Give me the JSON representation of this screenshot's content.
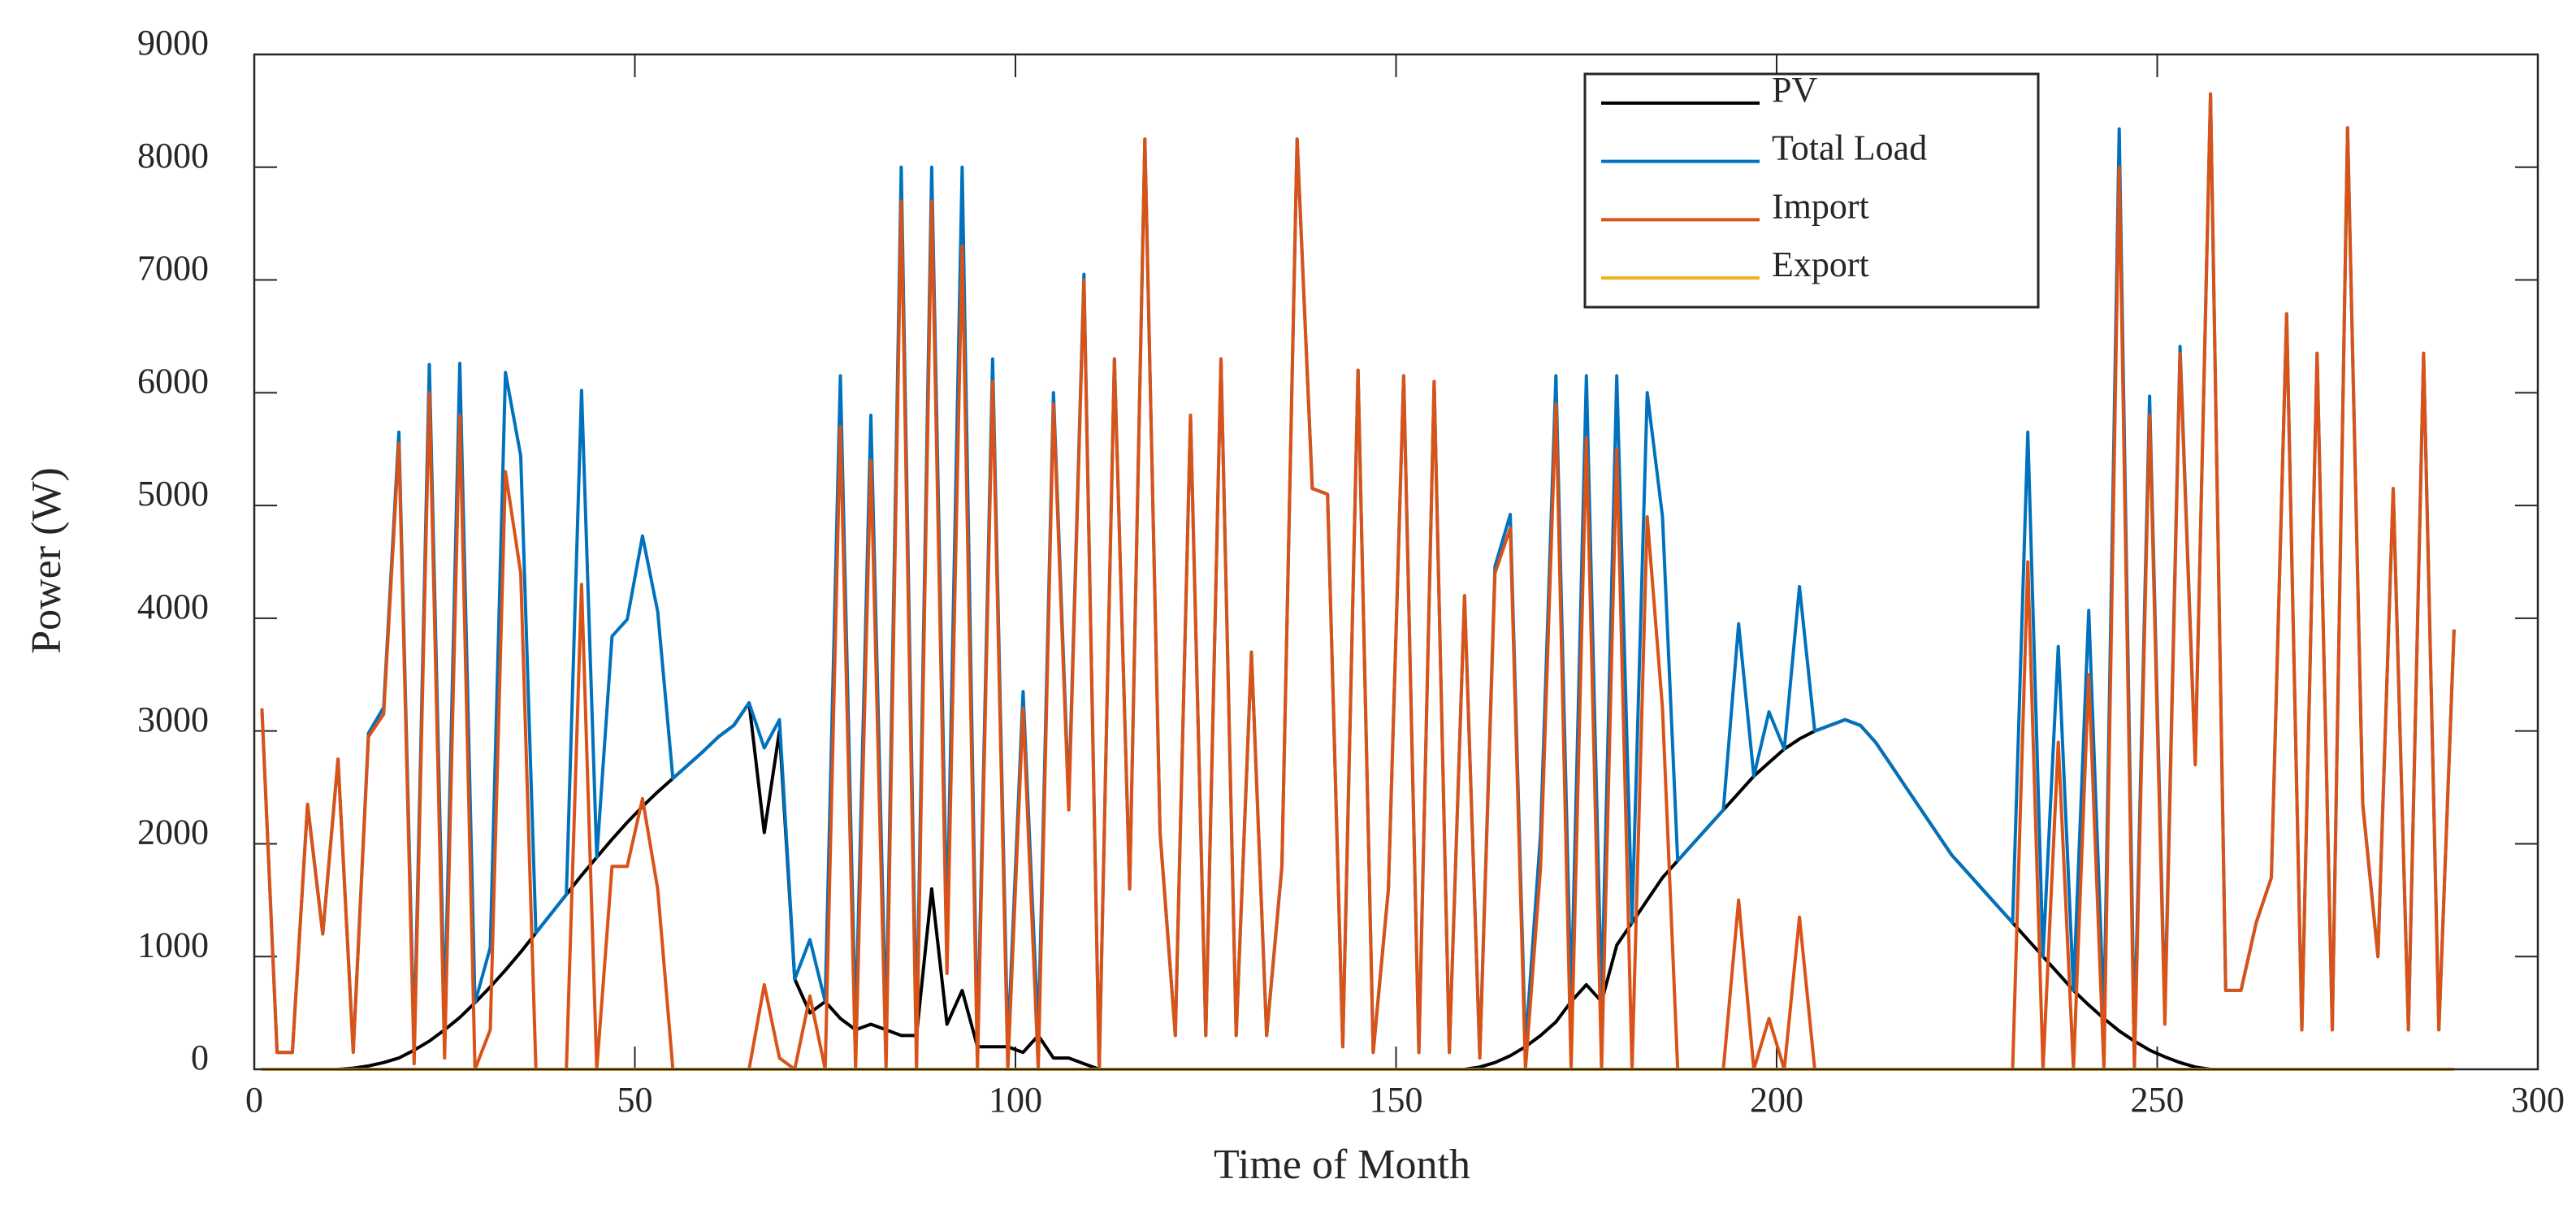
{
  "chart_data": {
    "type": "line",
    "xlabel": "Time of Month",
    "ylabel": "Power (W)",
    "x": [
      1,
      3,
      5,
      7,
      9,
      11,
      13,
      15,
      17,
      19,
      21,
      23,
      25,
      27,
      29,
      31,
      33,
      35,
      37,
      39,
      41,
      43,
      45,
      47,
      49,
      51,
      53,
      55,
      57,
      59,
      61,
      63,
      65,
      67,
      69,
      71,
      73,
      75,
      77,
      79,
      81,
      83,
      85,
      87,
      89,
      91,
      93,
      95,
      97,
      99,
      101,
      103,
      105,
      107,
      109,
      111,
      113,
      115,
      117,
      119,
      121,
      123,
      125,
      127,
      129,
      131,
      133,
      135,
      137,
      139,
      141,
      143,
      145,
      147,
      149,
      151,
      153,
      155,
      157,
      159,
      161,
      163,
      165,
      167,
      169,
      171,
      173,
      175,
      177,
      179,
      181,
      183,
      185,
      187,
      189,
      191,
      193,
      195,
      197,
      199,
      201,
      203,
      205,
      207,
      209,
      211,
      213,
      215,
      217,
      219,
      221,
      223,
      225,
      227,
      229,
      231,
      233,
      235,
      237,
      239,
      241,
      243,
      245,
      247,
      249,
      251,
      253,
      255,
      257,
      259,
      261,
      263,
      265,
      267,
      269,
      271,
      273,
      275,
      277,
      279,
      281,
      283,
      285,
      287,
      289
    ],
    "series": [
      {
        "name": "PV",
        "color": "#000000",
        "values": [
          0,
          0,
          0,
          0,
          0,
          0,
          10,
          30,
          60,
          100,
          170,
          250,
          350,
          460,
          590,
          730,
          880,
          1040,
          1210,
          1380,
          1550,
          1720,
          1880,
          2040,
          2190,
          2330,
          2460,
          2580,
          2700,
          2820,
          2950,
          3050,
          3250,
          2100,
          3000,
          800,
          500,
          600,
          450,
          350,
          400,
          350,
          300,
          300,
          1600,
          400,
          700,
          200,
          200,
          200,
          150,
          300,
          100,
          100,
          50,
          0,
          0,
          0,
          0,
          0,
          0,
          0,
          0,
          0,
          0,
          0,
          0,
          0,
          0,
          0,
          0,
          0,
          0,
          0,
          0,
          0,
          0,
          0,
          0,
          0,
          20,
          60,
          120,
          200,
          300,
          420,
          600,
          750,
          600,
          1100,
          1300,
          1500,
          1700,
          1850,
          2000,
          2150,
          2300,
          2450,
          2600,
          2720,
          2840,
          2930,
          3000,
          3050,
          3100,
          3050,
          2900,
          2700,
          2500,
          2300,
          2100,
          1900,
          1750,
          1600,
          1450,
          1300,
          1150,
          1000,
          850,
          700,
          570,
          450,
          340,
          250,
          170,
          110,
          60,
          20,
          0,
          0,
          0,
          0,
          0,
          0,
          0,
          0,
          0,
          0,
          0,
          0,
          0,
          0,
          0,
          0,
          0
        ]
      },
      {
        "name": "Total Load",
        "color": "#0072BD",
        "values": [
          3200,
          150,
          150,
          2350,
          1200,
          2750,
          160,
          2980,
          3210,
          5650,
          220,
          6250,
          450,
          6260,
          590,
          1080,
          6180,
          5440,
          1210,
          1380,
          1550,
          6020,
          1880,
          3840,
          3990,
          4730,
          4060,
          2580,
          2700,
          2820,
          2950,
          3050,
          3250,
          2850,
          3100,
          800,
          1150,
          600,
          6150,
          350,
          5800,
          350,
          8000,
          300,
          8000,
          1250,
          8000,
          200,
          6300,
          200,
          3350,
          300,
          6000,
          2400,
          7050,
          0,
          6300,
          1600,
          8250,
          2100,
          300,
          5800,
          300,
          6300,
          300,
          3700,
          300,
          1800,
          8250,
          5150,
          5100,
          200,
          6200,
          150,
          1600,
          6150,
          150,
          6100,
          150,
          4200,
          120,
          4460,
          4920,
          200,
          2100,
          6150,
          600,
          6150,
          600,
          6150,
          1300,
          6000,
          4900,
          1850,
          2000,
          2150,
          2300,
          3950,
          2600,
          3170,
          2840,
          4280,
          3000,
          3050,
          3100,
          3050,
          2900,
          2700,
          2500,
          2300,
          2100,
          1900,
          1750,
          1600,
          1450,
          1300,
          5650,
          1000,
          3750,
          700,
          4070,
          450,
          8340,
          250,
          5970,
          510,
          6410,
          2720,
          8650,
          700,
          700,
          1300,
          1700,
          6700,
          350,
          6350,
          350,
          8350,
          2350,
          1000,
          5150,
          350,
          6350,
          350,
          3900
        ]
      },
      {
        "name": "Import",
        "color": "#D95319",
        "values": [
          3200,
          150,
          150,
          2350,
          1200,
          2750,
          150,
          2950,
          3150,
          5550,
          50,
          6000,
          100,
          5800,
          0,
          350,
          5300,
          4400,
          0,
          0,
          0,
          4300,
          0,
          1800,
          1800,
          2400,
          1600,
          0,
          0,
          0,
          0,
          0,
          0,
          750,
          100,
          0,
          650,
          0,
          5700,
          0,
          5400,
          0,
          7700,
          0,
          7700,
          850,
          7300,
          0,
          6100,
          0,
          3200,
          0,
          5900,
          2300,
          7000,
          0,
          6300,
          1600,
          8250,
          2100,
          300,
          5800,
          300,
          6300,
          300,
          3700,
          300,
          1800,
          8250,
          5150,
          5100,
          200,
          6200,
          150,
          1600,
          6150,
          150,
          6100,
          150,
          4200,
          100,
          4400,
          4800,
          0,
          1800,
          5900,
          0,
          5600,
          0,
          5500,
          0,
          4900,
          3200,
          0,
          0,
          0,
          0,
          1500,
          0,
          450,
          0,
          1350,
          0,
          0,
          0,
          0,
          0,
          0,
          0,
          0,
          0,
          0,
          0,
          0,
          0,
          0,
          4500,
          0,
          2900,
          0,
          3500,
          0,
          8000,
          0,
          5800,
          400,
          6350,
          2700,
          8650,
          700,
          700,
          1300,
          1700,
          6700,
          350,
          6350,
          350,
          8350,
          2350,
          1000,
          5150,
          350,
          6350,
          350,
          3900
        ]
      },
      {
        "name": "Export",
        "color": "#EDB120",
        "values": [
          0,
          0,
          0,
          0,
          0,
          0,
          0,
          0,
          0,
          0,
          0,
          0,
          0,
          0,
          0,
          0,
          0,
          0,
          0,
          0,
          0,
          0,
          0,
          0,
          0,
          0,
          0,
          0,
          0,
          0,
          0,
          0,
          0,
          0,
          0,
          0,
          0,
          0,
          0,
          0,
          0,
          0,
          0,
          0,
          0,
          0,
          0,
          0,
          0,
          0,
          0,
          0,
          0,
          0,
          0,
          0,
          0,
          0,
          0,
          0,
          0,
          0,
          0,
          0,
          0,
          0,
          0,
          0,
          0,
          0,
          0,
          0,
          0,
          0,
          0,
          0,
          0,
          0,
          0,
          0,
          0,
          0,
          0,
          0,
          0,
          0,
          0,
          0,
          0,
          0,
          0,
          0,
          0,
          0,
          0,
          0,
          0,
          0,
          0,
          0,
          0,
          0,
          0,
          0,
          0,
          0,
          0,
          0,
          0,
          0,
          0,
          0,
          0,
          0,
          0,
          0,
          0,
          0,
          0,
          0,
          0,
          0,
          0,
          0,
          0,
          0,
          0,
          0,
          0,
          0,
          0,
          0,
          0,
          0,
          0,
          0,
          0,
          0,
          0,
          0,
          0,
          0,
          0,
          0,
          0
        ]
      }
    ],
    "xlim": [
      0,
      300
    ],
    "xticks": [
      0,
      50,
      100,
      150,
      200,
      250,
      300
    ],
    "ylim": [
      0,
      9000
    ],
    "yticks": [
      0,
      1000,
      2000,
      3000,
      4000,
      5000,
      6000,
      7000,
      8000,
      9000
    ],
    "grid": false,
    "legend": "north"
  }
}
